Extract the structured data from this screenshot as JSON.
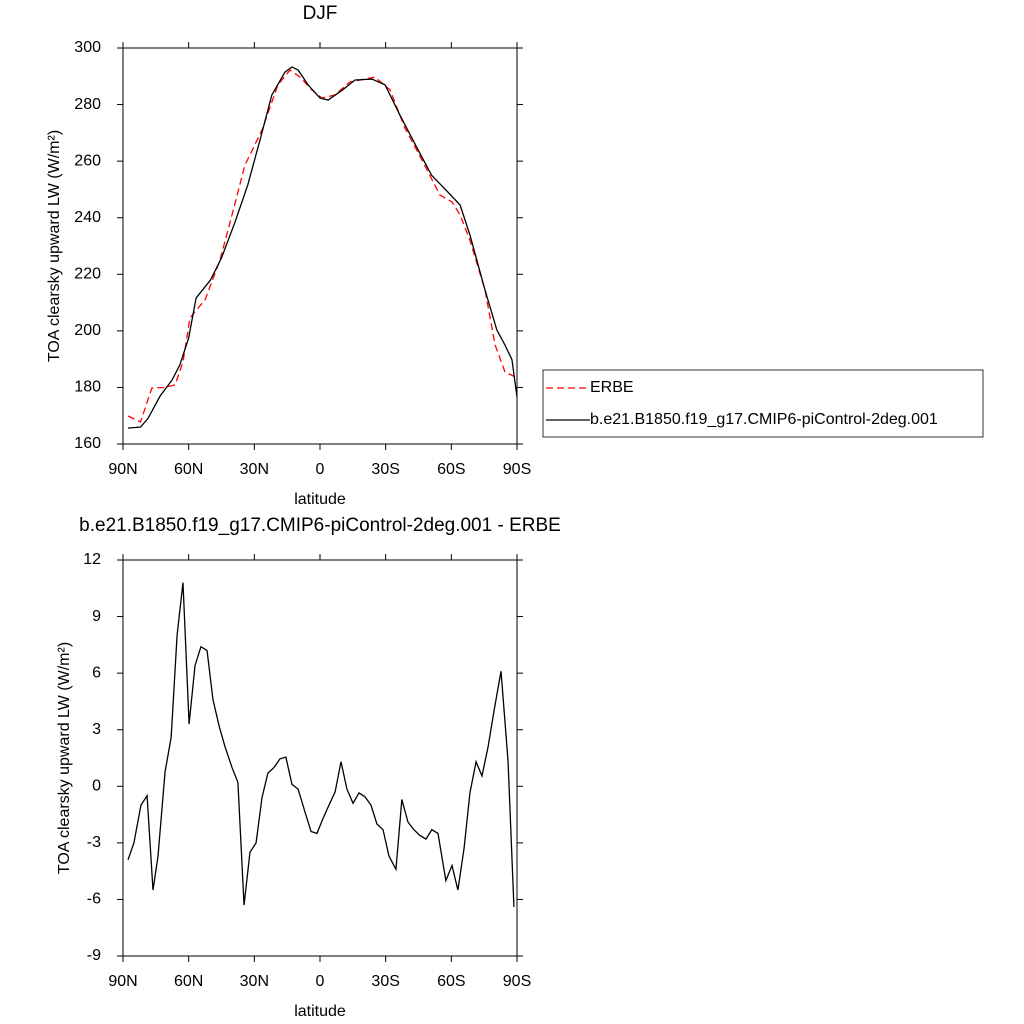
{
  "chart_data": [
    {
      "type": "line",
      "title": "DJF",
      "x_label": "latitude",
      "y_label": "TOA clearsky upward LW (W/m²)",
      "xlim": [
        90,
        -90
      ],
      "xticks": [
        {
          "value": 90,
          "label": "90N"
        },
        {
          "value": 60,
          "label": "60N"
        },
        {
          "value": 30,
          "label": "30N"
        },
        0,
        {
          "value": -30,
          "label": "30S"
        },
        {
          "value": -60,
          "label": "60S"
        },
        {
          "value": -90,
          "label": "90S"
        }
      ],
      "ylim": [
        160,
        300
      ],
      "yticks": [
        160,
        180,
        200,
        220,
        240,
        260,
        280,
        300
      ],
      "legend": "right",
      "series": [
        {
          "name": "ERBE",
          "color": "#ff0000",
          "linestyle": "dashed",
          "x": [
            87.7,
            82,
            76.8,
            70.8,
            66.2,
            62.6,
            59.4,
            52.5,
            45.7,
            40.2,
            34.3,
            26.5,
            19.2,
            13.7,
            9.1,
            3.7,
            -0.9,
            -6.8,
            -13.7,
            -25.1,
            -32,
            -38.8,
            -46.6,
            -54.8,
            -60.3,
            -64,
            -68.5,
            -75.4,
            -80,
            -84.5,
            -90
          ],
          "values": [
            169.9,
            167.8,
            179.8,
            180,
            180.9,
            189,
            204.6,
            211,
            225,
            241,
            258.6,
            271,
            287,
            292.2,
            289.7,
            285.2,
            282.3,
            283.4,
            288,
            289.7,
            285.2,
            271.7,
            260.4,
            248,
            245.6,
            241,
            232,
            214.4,
            195,
            185.5,
            183.4
          ]
        },
        {
          "name": "b.e21.B1850.f19_g17.CMIP6-piControl-2deg.001",
          "color": "#000000",
          "linestyle": "solid",
          "x": [
            87.7,
            82,
            78.6,
            73,
            67.6,
            64,
            60,
            56.6,
            50,
            45,
            38.8,
            33,
            27.4,
            22,
            16,
            12.8,
            10,
            5.5,
            0,
            -3.7,
            -10,
            -16,
            -23.8,
            -29.7,
            -36.5,
            -44.8,
            -51,
            -58.5,
            -64,
            -68.5,
            -75.4,
            -80.8,
            -84.5,
            -87.7,
            -90
          ],
          "values": [
            165.6,
            166,
            169,
            177,
            182.6,
            188,
            197.5,
            211.6,
            218,
            225.8,
            238.5,
            251.6,
            267.5,
            283.4,
            291.5,
            293.3,
            292.2,
            287,
            282.3,
            281.6,
            285,
            288.7,
            289,
            287,
            276.3,
            264,
            255,
            249,
            244.5,
            233.9,
            214.4,
            200.3,
            195,
            189.8,
            176.6
          ]
        }
      ]
    },
    {
      "type": "line",
      "title": "b.e21.B1850.f19_g17.CMIP6-piControl-2deg.001 - ERBE",
      "x_label": "latitude",
      "y_label": "TOA clearsky upward LW (W/m²)",
      "xlim": [
        90,
        -90
      ],
      "xticks": [
        {
          "value": 90,
          "label": "90N"
        },
        {
          "value": 60,
          "label": "60N"
        },
        {
          "value": 30,
          "label": "30N"
        },
        0,
        {
          "value": -30,
          "label": "30S"
        },
        {
          "value": -60,
          "label": "60S"
        },
        {
          "value": -90,
          "label": "90S"
        }
      ],
      "ylim": [
        -9,
        12
      ],
      "yticks": [
        -9,
        -6,
        -3,
        0,
        3,
        6,
        9,
        12
      ],
      "series": [
        {
          "color": "#000000",
          "linestyle": "solid",
          "x": [
            87.7,
            85,
            81.8,
            79,
            76.3,
            74,
            70.8,
            68,
            65.3,
            62.6,
            59.8,
            57.1,
            54.4,
            51.6,
            48.9,
            46.1,
            43.4,
            40.2,
            37.5,
            34.7,
            32,
            29.2,
            26.5,
            23.8,
            21,
            18.3,
            15.6,
            12.8,
            10,
            6.9,
            4.1,
            1.4,
            -1.4,
            -4.1,
            -6.9,
            -9.6,
            -12.3,
            -15.1,
            -17.8,
            -20.5,
            -23.3,
            -26,
            -28.8,
            -31.5,
            -34.7,
            -37.4,
            -40.2,
            -42.9,
            -45.6,
            -48.4,
            -51.1,
            -53.9,
            -57.5,
            -60.3,
            -63,
            -65.8,
            -68.5,
            -71.3,
            -74,
            -76.8,
            -79.5,
            -82.7,
            -85.9,
            -88.6
          ],
          "values": [
            -3.9,
            -3,
            -1,
            -0.5,
            -5.5,
            -3.7,
            0.75,
            2.6,
            8,
            10.8,
            3.3,
            6.4,
            7.4,
            7.2,
            4.6,
            3.2,
            2.1,
            1,
            0.2,
            -6.3,
            -3.5,
            -3,
            -0.6,
            0.7,
            1,
            1.45,
            1.55,
            0.1,
            -0.15,
            -1.35,
            -2.4,
            -2.5,
            -1.7,
            -1,
            -0.3,
            1.3,
            -0.15,
            -0.9,
            -0.35,
            -0.55,
            -1,
            -2,
            -2.3,
            -3.7,
            -4.4,
            -0.7,
            -1.9,
            -2.3,
            -2.6,
            -2.8,
            -2.3,
            -2.5,
            -5,
            -4.2,
            -5.5,
            -3.3,
            -0.35,
            1.3,
            0.55,
            2.1,
            4,
            6.1,
            1.35,
            -6.4
          ]
        }
      ]
    }
  ]
}
